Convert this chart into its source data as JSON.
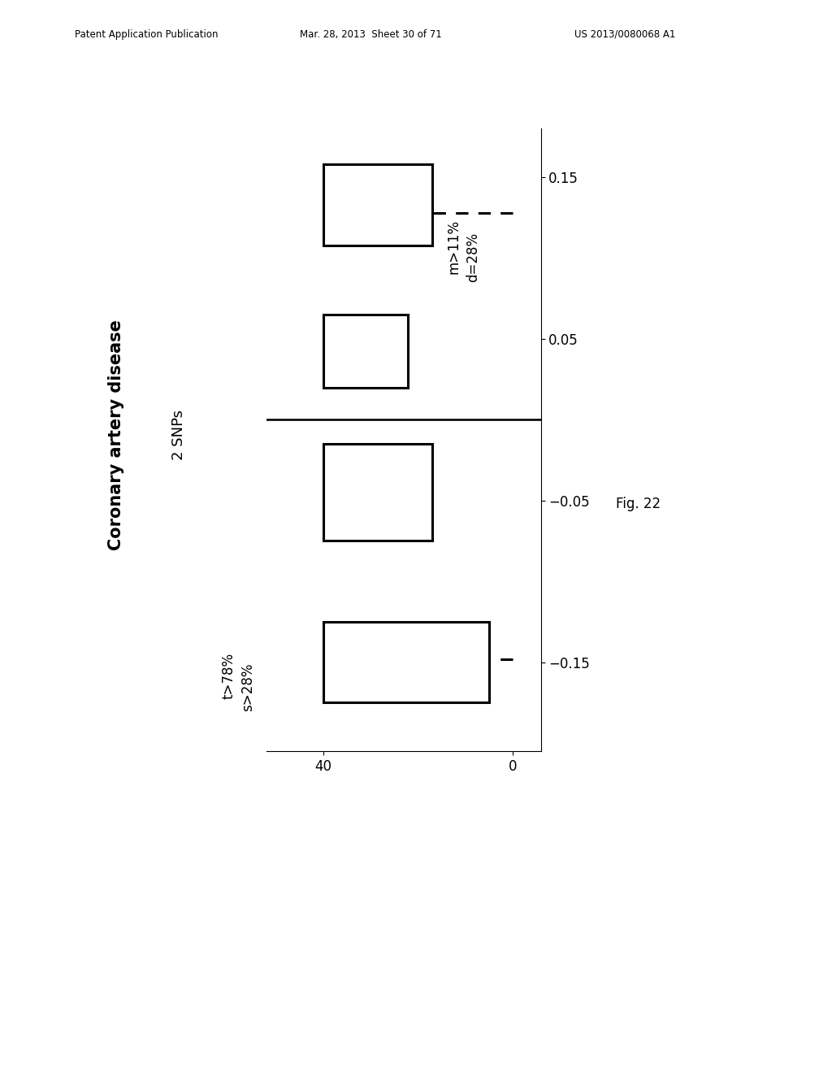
{
  "title1": "Coronary artery disease",
  "title2": "2 SNPs",
  "ann_left1": "t>78%",
  "ann_left2": "s>28%",
  "ann_right1": "m>11%",
  "ann_right2": "d=28%",
  "fig_label": "Fig. 22",
  "header_pub": "Patent Application Publication",
  "header_date": "Mar. 28, 2013  Sheet 30 of 71",
  "header_patent": "US 2013/0080068 A1",
  "boxes": [
    {
      "rs_lo": -0.175,
      "rs_hi": -0.125,
      "count_lo": 5,
      "count_hi": 40,
      "dashed_rs": -0.148,
      "dashed_count_lo": 0,
      "dashed_count_hi": 5,
      "has_dashed": true
    },
    {
      "rs_lo": -0.075,
      "rs_hi": -0.015,
      "count_lo": 17,
      "count_hi": 40,
      "dashed_rs": null,
      "dashed_count_lo": null,
      "dashed_count_hi": null,
      "has_dashed": false
    },
    {
      "rs_lo": 0.02,
      "rs_hi": 0.065,
      "count_lo": 22,
      "count_hi": 40,
      "dashed_rs": null,
      "dashed_count_lo": null,
      "dashed_count_hi": null,
      "has_dashed": false
    },
    {
      "rs_lo": 0.108,
      "rs_hi": 0.158,
      "count_lo": 17,
      "count_hi": 40,
      "dashed_rs": 0.128,
      "dashed_count_lo": 0,
      "dashed_count_hi": 17,
      "has_dashed": true
    }
  ],
  "rs_ticks": [
    -0.15,
    -0.05,
    0.05,
    0.15
  ],
  "count_ticks": [
    0,
    40
  ],
  "rs_lim": [
    -0.205,
    0.18
  ],
  "count_xlim": [
    52,
    -6
  ],
  "bg": "#ffffff",
  "lw": 2.2,
  "title1_fs": 15,
  "title2_fs": 13,
  "ann_fs": 12,
  "tick_fs": 12
}
